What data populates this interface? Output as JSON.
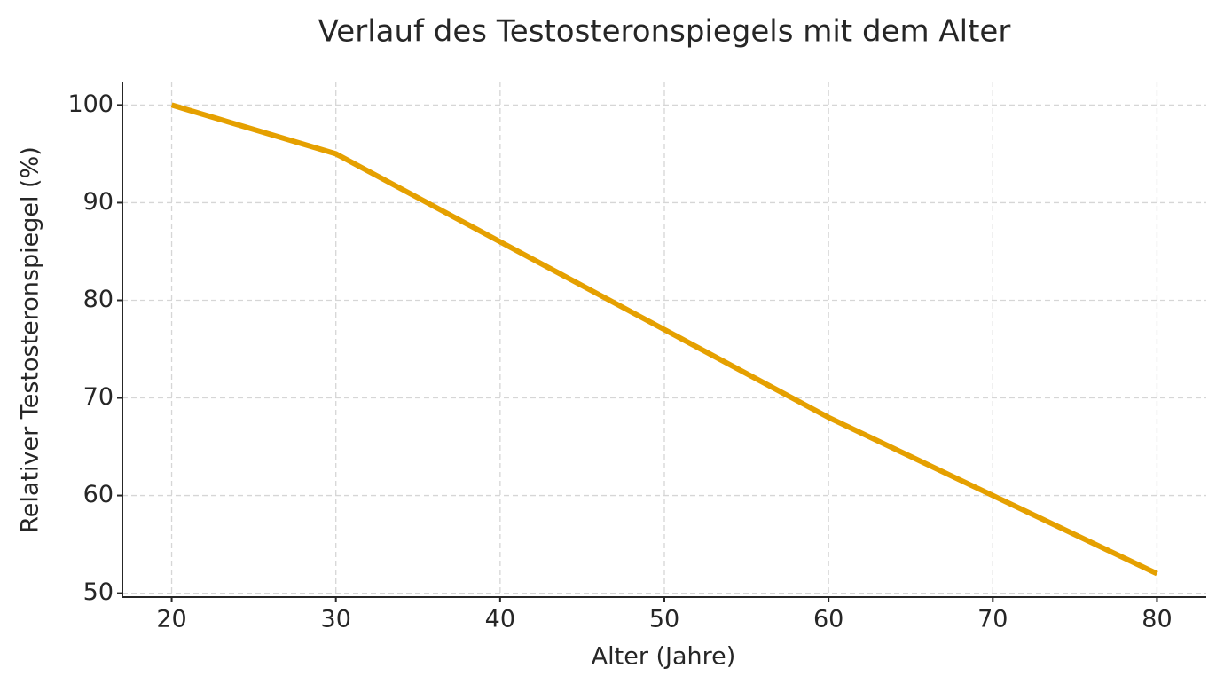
{
  "chart_data": {
    "type": "line",
    "title": "Verlauf des Testosteronspiegels mit dem Alter",
    "x_label": "Alter (Jahre)",
    "y_label": "Relativer Testosteronspiegel (%)",
    "x": [
      20,
      30,
      40,
      50,
      60,
      70,
      80
    ],
    "series": [
      {
        "name": "Testosteronspiegel",
        "color": "#e5a000",
        "values": [
          100,
          95,
          86,
          77,
          68,
          60,
          52
        ]
      }
    ],
    "xlim": [
      17,
      83
    ],
    "xticks": [
      20,
      30,
      40,
      50,
      60,
      70,
      80
    ],
    "ylim": [
      49.6,
      102.4
    ],
    "yticks": [
      50,
      60,
      70,
      80,
      90,
      100
    ],
    "grid": true
  }
}
